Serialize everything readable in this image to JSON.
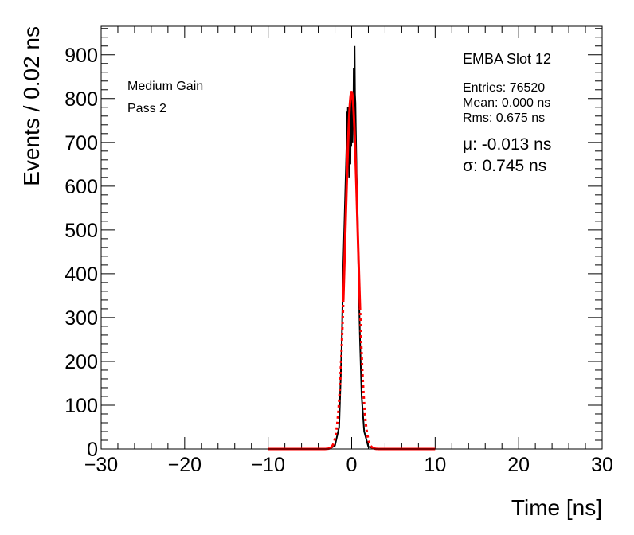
{
  "chart_data": {
    "type": "line",
    "xlabel": "Time [ns]",
    "ylabel": "Events / 0.02 ns",
    "xlim": [
      -30,
      30
    ],
    "ylim": [
      0,
      965
    ],
    "x_ticks": [
      "−30",
      "−20",
      "−10",
      "0",
      "10",
      "20",
      "30"
    ],
    "y_ticks": [
      "0",
      "100",
      "200",
      "300",
      "400",
      "500",
      "600",
      "700",
      "800",
      "900"
    ],
    "annotations": {
      "left_line1": "Medium Gain",
      "left_line2": "Pass 2",
      "title": "EMBA Slot 12",
      "entries": "Entries: 76520",
      "mean": "Mean: 0.000 ns",
      "rms": "Rms: 0.675 ns",
      "mu": "μ: -0.013 ns",
      "sigma": "σ: 0.745 ns"
    },
    "series": [
      {
        "style": "histogram",
        "color": "#000000",
        "points": [
          [
            -10,
            0
          ],
          [
            -3,
            0
          ],
          [
            -2.5,
            2
          ],
          [
            -2,
            8
          ],
          [
            -1.5,
            50
          ],
          [
            -1.2,
            230
          ],
          [
            -1,
            420
          ],
          [
            -0.8,
            560
          ],
          [
            -0.6,
            700
          ],
          [
            -0.55,
            770
          ],
          [
            -0.5,
            730
          ],
          [
            -0.45,
            780
          ],
          [
            -0.4,
            710
          ],
          [
            -0.35,
            760
          ],
          [
            -0.3,
            620
          ],
          [
            -0.25,
            700
          ],
          [
            -0.2,
            780
          ],
          [
            -0.15,
            650
          ],
          [
            -0.1,
            800
          ],
          [
            -0.05,
            690
          ],
          [
            0,
            740
          ],
          [
            0.05,
            810
          ],
          [
            0.1,
            700
          ],
          [
            0.15,
            790
          ],
          [
            0.2,
            740
          ],
          [
            0.25,
            870
          ],
          [
            0.3,
            760
          ],
          [
            0.35,
            920
          ],
          [
            0.4,
            810
          ],
          [
            0.45,
            790
          ],
          [
            0.5,
            730
          ],
          [
            0.6,
            620
          ],
          [
            0.7,
            560
          ],
          [
            0.8,
            430
          ],
          [
            0.9,
            330
          ],
          [
            1,
            250
          ],
          [
            1.2,
            120
          ],
          [
            1.5,
            40
          ],
          [
            2,
            5
          ],
          [
            3,
            0
          ],
          [
            10,
            0
          ]
        ]
      },
      {
        "style": "fit",
        "color": "#ff0000",
        "mu": -0.013,
        "sigma": 0.745,
        "amplitude": 815,
        "range": [
          -10,
          10
        ]
      }
    ]
  }
}
